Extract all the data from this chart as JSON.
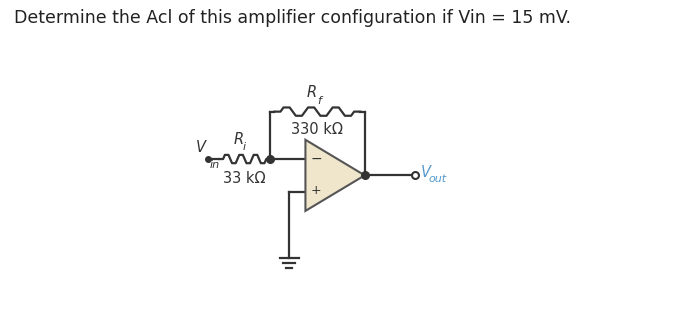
{
  "title": "Determine the Acl of this amplifier configuration if Vin = 15 mV.",
  "title_fontsize": 12.5,
  "bg_color": "#ffffff",
  "circuit": {
    "vin_label": "V",
    "vin_sub": "in",
    "ri_label": "R",
    "ri_sub": "i",
    "rf_label": "R",
    "rf_sub": "f",
    "ri_value": "33 kΩ",
    "rf_value": "330 kΩ",
    "vout_label": "V",
    "vout_sub": "out",
    "opamp_fill": "#f0e6cc",
    "opamp_edge": "#555555",
    "line_color": "#333333",
    "vout_color": "#5599cc",
    "minus_label": "−",
    "plus_label": "+"
  }
}
